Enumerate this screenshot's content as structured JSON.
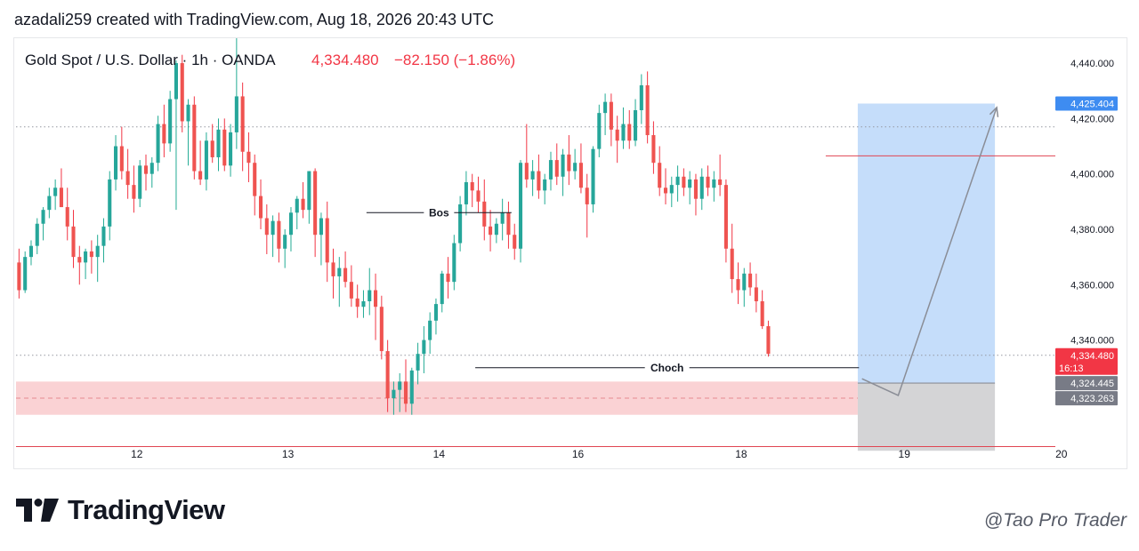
{
  "header": {
    "text": "azadali259 created with TradingView.com, Aug 18, 2026 20:43 UTC"
  },
  "footer": {
    "logo_text": "TradingView",
    "watermark": "@Tao Pro Trader"
  },
  "colors": {
    "up": "#22ab94",
    "down": "#f23645",
    "up_body": "#26a69a",
    "down_body": "#ef5350",
    "target_zone": "#bfd9f9",
    "stop_zone": "#cfcfd1",
    "demand_zone": "#f8c3c5",
    "last_price_bg": "#f23645",
    "target_bg": "#3e8cf1",
    "grey_label_bg": "#787b86"
  },
  "chart_data": {
    "type": "candlestick",
    "symbol_name": "Gold Spot / U.S. Dollar · 1h · OANDA",
    "last_price_text": "4,334.480",
    "change_text": "−82.150 (−1.86%)",
    "y_axis": {
      "ylim": [
        4302,
        4449
      ],
      "ticks": [
        "4,440.000",
        "4,420.000",
        "4,400.000",
        "4,380.000",
        "4,360.000",
        "4,340.000"
      ],
      "tick_values": [
        4440,
        4420,
        4400,
        4380,
        4360,
        4340
      ]
    },
    "x_axis": {
      "xlim": [
        0,
        172
      ],
      "labels": [
        "12",
        "13",
        "14",
        "16",
        "18",
        "19",
        "20"
      ],
      "label_positions": [
        20,
        45,
        70,
        93,
        120,
        147,
        173
      ]
    },
    "price_labels": [
      {
        "value": 4425.404,
        "text": "4,425.404",
        "style": "target"
      },
      {
        "value": 4334.48,
        "text": "4,334.480",
        "subtext": "16:13",
        "style": "last"
      },
      {
        "value": 4324.445,
        "text": "4,324.445",
        "style": "grey"
      },
      {
        "value": 4323.263,
        "text": "4,323.263",
        "style": "grey"
      }
    ],
    "dotted_levels": [
      4417,
      4334.48
    ],
    "horizontal_lines": [
      4406.5,
      4301.5
    ],
    "horizontal_lines_start_x": [
      134,
      0
    ],
    "demand_zone": {
      "y_from": 4313,
      "y_to": 4325,
      "x_from": 0,
      "x_to": 139.3
    },
    "position_tool": {
      "x_from": 139.3,
      "x_to": 162,
      "entry": 4324.445,
      "target": 4425.404,
      "stop": 4300
    },
    "projection_path": [
      [
        140,
        4326
      ],
      [
        146,
        4320
      ],
      [
        162.3,
        4424
      ]
    ],
    "annotations": [
      {
        "text": "Bos",
        "level": 4386,
        "x_from": 58,
        "x_to": 82
      },
      {
        "text": "Choch",
        "level": 4330,
        "x_from": 76,
        "x_to": 139.5
      }
    ],
    "candles": [
      [
        4368,
        4373,
        4355,
        4358
      ],
      [
        4358,
        4372,
        4357,
        4370
      ],
      [
        4370,
        4376,
        4367,
        4374
      ],
      [
        4374,
        4384,
        4371,
        4382
      ],
      [
        4382,
        4388,
        4376,
        4387
      ],
      [
        4387,
        4395,
        4384,
        4392
      ],
      [
        4392,
        4398,
        4387,
        4395
      ],
      [
        4395,
        4402,
        4388,
        4388
      ],
      [
        4388,
        4395,
        4376,
        4381
      ],
      [
        4381,
        4387,
        4366,
        4370
      ],
      [
        4370,
        4374,
        4360,
        4368
      ],
      [
        4368,
        4373,
        4362,
        4372
      ],
      [
        4372,
        4376,
        4364,
        4370
      ],
      [
        4370,
        4378,
        4361,
        4374
      ],
      [
        4374,
        4384,
        4368,
        4381
      ],
      [
        4381,
        4401,
        4376,
        4398
      ],
      [
        4398,
        4414,
        4394,
        4410
      ],
      [
        4410,
        4417,
        4398,
        4401
      ],
      [
        4401,
        4409,
        4391,
        4396
      ],
      [
        4396,
        4403,
        4386,
        4391
      ],
      [
        4391,
        4405,
        4388,
        4403
      ],
      [
        4403,
        4407,
        4394,
        4400
      ],
      [
        4400,
        4406,
        4395,
        4404
      ],
      [
        4404,
        4421,
        4401,
        4418
      ],
      [
        4418,
        4425,
        4406,
        4411
      ],
      [
        4411,
        4430,
        4408,
        4427
      ],
      [
        4427,
        4441,
        4387,
        4440
      ],
      [
        4440,
        4443,
        4415,
        4419
      ],
      [
        4419,
        4427,
        4403,
        4425
      ],
      [
        4425,
        4428,
        4398,
        4401
      ],
      [
        4401,
        4412,
        4396,
        4398
      ],
      [
        4398,
        4415,
        4394,
        4412
      ],
      [
        4412,
        4418,
        4404,
        4406
      ],
      [
        4406,
        4420,
        4401,
        4416
      ],
      [
        4416,
        4420,
        4401,
        4403
      ],
      [
        4403,
        4418,
        4399,
        4415
      ],
      [
        4415,
        4449,
        4409,
        4428
      ],
      [
        4428,
        4433,
        4401,
        4408
      ],
      [
        4408,
        4415,
        4397,
        4404
      ],
      [
        4404,
        4407,
        4385,
        4392
      ],
      [
        4392,
        4398,
        4380,
        4384
      ],
      [
        4384,
        4389,
        4371,
        4378
      ],
      [
        4378,
        4385,
        4370,
        4383
      ],
      [
        4383,
        4386,
        4368,
        4373
      ],
      [
        4373,
        4380,
        4366,
        4378
      ],
      [
        4378,
        4388,
        4372,
        4386
      ],
      [
        4386,
        4392,
        4380,
        4391
      ],
      [
        4391,
        4397,
        4384,
        4387
      ],
      [
        4387,
        4401,
        4382,
        4401
      ],
      [
        4401,
        4402,
        4370,
        4378
      ],
      [
        4378,
        4386,
        4367,
        4384
      ],
      [
        4384,
        4390,
        4361,
        4368
      ],
      [
        4368,
        4373,
        4355,
        4363
      ],
      [
        4363,
        4370,
        4352,
        4366
      ],
      [
        4366,
        4372,
        4359,
        4361
      ],
      [
        4361,
        4367,
        4352,
        4355
      ],
      [
        4355,
        4360,
        4348,
        4352
      ],
      [
        4352,
        4358,
        4348,
        4354
      ],
      [
        4354,
        4366,
        4349,
        4358
      ],
      [
        4358,
        4364,
        4340,
        4352
      ],
      [
        4352,
        4356,
        4333,
        4336
      ],
      [
        4336,
        4340,
        4314,
        4319
      ],
      [
        4319,
        4325,
        4313,
        4322
      ],
      [
        4322,
        4328,
        4314,
        4325
      ],
      [
        4325,
        4333,
        4314,
        4317
      ],
      [
        4317,
        4330,
        4313,
        4329
      ],
      [
        4329,
        4339,
        4324,
        4335
      ],
      [
        4335,
        4345,
        4328,
        4340
      ],
      [
        4340,
        4350,
        4335,
        4347
      ],
      [
        4347,
        4355,
        4342,
        4353
      ],
      [
        4353,
        4365,
        4350,
        4364
      ],
      [
        4364,
        4370,
        4355,
        4361
      ],
      [
        4361,
        4378,
        4358,
        4375
      ],
      [
        4375,
        4392,
        4372,
        4389
      ],
      [
        4389,
        4401,
        4385,
        4397
      ],
      [
        4397,
        4400,
        4388,
        4394
      ],
      [
        4394,
        4399,
        4386,
        4390
      ],
      [
        4390,
        4398,
        4376,
        4381
      ],
      [
        4381,
        4387,
        4372,
        4378
      ],
      [
        4378,
        4384,
        4375,
        4382
      ],
      [
        4382,
        4391,
        4376,
        4386
      ],
      [
        4386,
        4390,
        4373,
        4378
      ],
      [
        4378,
        4382,
        4369,
        4373
      ],
      [
        4373,
        4405,
        4368,
        4404
      ],
      [
        4404,
        4418,
        4395,
        4398
      ],
      [
        4398,
        4405,
        4392,
        4401
      ],
      [
        4401,
        4407,
        4391,
        4394
      ],
      [
        4394,
        4400,
        4389,
        4398
      ],
      [
        4398,
        4408,
        4394,
        4405
      ],
      [
        4405,
        4411,
        4396,
        4399
      ],
      [
        4399,
        4409,
        4392,
        4407
      ],
      [
        4407,
        4414,
        4396,
        4401
      ],
      [
        4401,
        4409,
        4398,
        4404
      ],
      [
        4404,
        4411,
        4393,
        4395
      ],
      [
        4395,
        4400,
        4377,
        4389
      ],
      [
        4389,
        4410,
        4386,
        4409
      ],
      [
        4409,
        4425,
        4406,
        4422
      ],
      [
        4422,
        4429,
        4414,
        4426
      ],
      [
        4426,
        4429,
        4410,
        4416
      ],
      [
        4416,
        4421,
        4404,
        4412
      ],
      [
        4412,
        4424,
        4409,
        4418
      ],
      [
        4418,
        4423,
        4409,
        4412
      ],
      [
        4412,
        4427,
        4410,
        4423
      ],
      [
        4423,
        4436,
        4418,
        4432
      ],
      [
        4432,
        4437,
        4411,
        4414
      ],
      [
        4414,
        4419,
        4400,
        4404
      ],
      [
        4404,
        4410,
        4392,
        4395
      ],
      [
        4395,
        4402,
        4389,
        4393
      ],
      [
        4393,
        4399,
        4388,
        4396
      ],
      [
        4396,
        4403,
        4390,
        4399
      ],
      [
        4399,
        4402,
        4392,
        4395
      ],
      [
        4395,
        4401,
        4389,
        4398
      ],
      [
        4398,
        4400,
        4385,
        4391
      ],
      [
        4391,
        4402,
        4387,
        4399
      ],
      [
        4399,
        4403,
        4392,
        4395
      ],
      [
        4395,
        4401,
        4390,
        4398
      ],
      [
        4398,
        4407,
        4392,
        4396
      ],
      [
        4396,
        4398,
        4368,
        4373
      ],
      [
        4373,
        4382,
        4357,
        4362
      ],
      [
        4362,
        4368,
        4353,
        4358
      ],
      [
        4358,
        4366,
        4352,
        4364
      ],
      [
        4364,
        4368,
        4356,
        4359
      ],
      [
        4359,
        4364,
        4350,
        4354
      ],
      [
        4354,
        4358,
        4344,
        4345
      ],
      [
        4345,
        4347,
        4334,
        4335
      ]
    ]
  }
}
